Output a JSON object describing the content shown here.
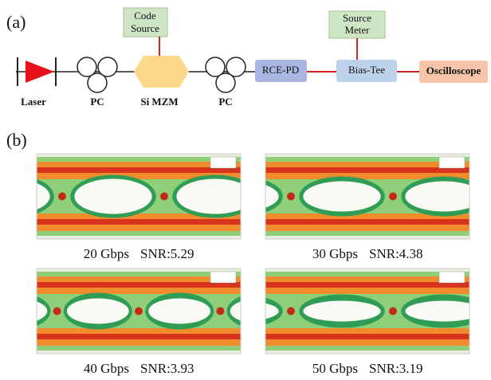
{
  "panel_a": {
    "label": "(a)",
    "laser": "Laser",
    "pc1": "PC",
    "mzm": "Si MZM",
    "pc2": "PC",
    "code_source": [
      "Code",
      "Source"
    ],
    "source_meter": [
      "Source",
      "Meter"
    ],
    "rce_pd": "RCE-PD",
    "bias_tee": "Bias-Tee",
    "oscilloscope": "Oscilloscope"
  },
  "panel_b": {
    "label": "(b)",
    "eyes": [
      {
        "rate": "20 Gbps",
        "snr": "SNR:5.29"
      },
      {
        "rate": "30 Gbps",
        "snr": "SNR:4.38"
      },
      {
        "rate": "40 Gbps",
        "snr": "SNR:3.93"
      },
      {
        "rate": "50 Gbps",
        "snr": "SNR:3.19"
      }
    ]
  }
}
